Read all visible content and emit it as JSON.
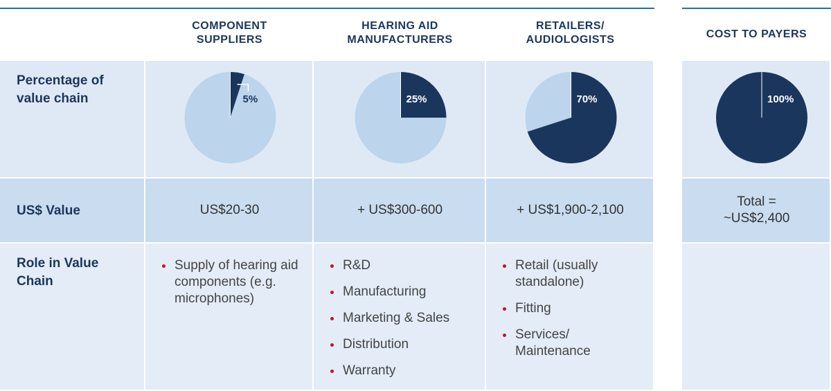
{
  "row_labels": [
    "Percentage of value chain",
    "US$ Value",
    "Role in Value Chain"
  ],
  "columns": [
    {
      "title_lines": [
        "COMPONENT",
        "SUPPLIERS"
      ],
      "share": 5,
      "share_label": "5%",
      "value_lines": [
        "US$20-30"
      ],
      "roles": [
        "Supply of hearing aid components (e.g. microphones)"
      ]
    },
    {
      "title_lines": [
        "HEARING AID",
        "MANUFACTURERS"
      ],
      "share": 25,
      "share_label": "25%",
      "value_lines": [
        "+ US$300-600"
      ],
      "roles": [
        "R&D",
        "Manufacturing",
        "Marketing & Sales",
        "Distribution",
        "Warranty"
      ]
    },
    {
      "title_lines": [
        "RETAILERS/",
        "AUDIOLOGISTS"
      ],
      "share": 70,
      "share_label": "70%",
      "value_lines": [
        "+ US$1,900-2,100"
      ],
      "roles": [
        "Retail (usually standalone)",
        "Fitting",
        "Services/ Maintenance"
      ]
    },
    {
      "title_lines": [
        "COST TO PAYERS"
      ],
      "share": 100,
      "share_label": "100%",
      "value_lines": [
        "Total =",
        "~US$2,400"
      ],
      "roles": []
    }
  ]
}
